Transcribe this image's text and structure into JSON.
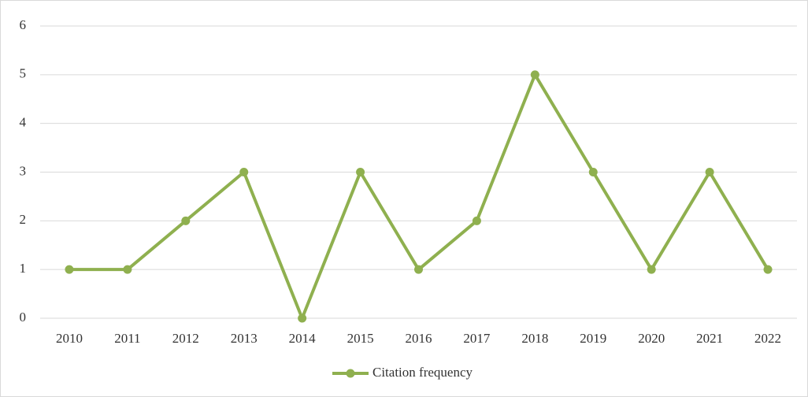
{
  "chart_data": {
    "type": "line",
    "categories": [
      "2010",
      "2011",
      "2012",
      "2013",
      "2014",
      "2015",
      "2016",
      "2017",
      "2018",
      "2019",
      "2020",
      "2021",
      "2022"
    ],
    "series": [
      {
        "name": "Citation frequency",
        "color": "#8fb04f",
        "values": [
          1,
          1,
          2,
          3,
          0,
          3,
          1,
          2,
          5,
          3,
          1,
          3,
          1
        ]
      }
    ],
    "ylim": [
      0,
      6
    ],
    "yticks": [
      0,
      1,
      2,
      3,
      4,
      5,
      6
    ],
    "grid": true,
    "legend": "bottom"
  }
}
